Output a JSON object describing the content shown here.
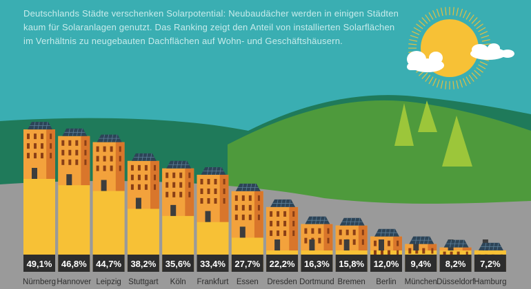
{
  "header": {
    "lines": [
      "Deutschlands Städte verschenken Solarpotential: Neubaudächer werden in einigen Städten",
      "kaum für Solaranlagen genutzt. Das Ranking zeigt den Anteil von installierten Solarflächen",
      "im Verhältnis zu neugebauten Dachflächen auf Wohn- und Geschäftshäusern."
    ]
  },
  "colors": {
    "sky": "#3aaeb2",
    "hill_dark": "#1f7a5a",
    "hill_light": "#4e9a3c",
    "tree": "#9cc63a",
    "ground": "#9a9a9a",
    "bar": "#f7c136",
    "building_front": "#f3a23c",
    "building_side": "#d9762b",
    "window": "#8a3f16",
    "door": "#3d3d3d",
    "solar": "#2d4457",
    "label_bg": "#2d2d2d",
    "label_text": "#ffffff",
    "sun": "#f7c136",
    "cloud": "#ffffff"
  },
  "decor": {
    "sun": "sun-icon",
    "clouds": "cloud-icon",
    "trees": "tree-icon",
    "solar_panel": "solar-panel-icon",
    "building": "building-icon"
  },
  "chart_data": {
    "type": "bar",
    "categories": [
      "Nürnberg",
      "Hannover",
      "Leipzig",
      "Stuttgart",
      "Köln",
      "Frankfurt",
      "Essen",
      "Dresden",
      "Dortmund",
      "Bremen",
      "Berlin",
      "München",
      "Düsseldorf",
      "Hamburg"
    ],
    "values": [
      49.1,
      46.8,
      44.7,
      38.2,
      35.6,
      33.4,
      27.7,
      22.2,
      16.3,
      15.8,
      12.0,
      9.4,
      8.2,
      7.2
    ],
    "value_labels": [
      "49,1%",
      "46,8%",
      "44,7%",
      "38,2%",
      "35,6%",
      "33,4%",
      "27,7%",
      "22,2%",
      "16,3%",
      "15,8%",
      "12,0%",
      "9,4%",
      "8,2%",
      "7,2%"
    ],
    "title": "",
    "xlabel": "",
    "ylabel": "",
    "ylim": [
      0,
      52
    ],
    "grid": false,
    "legend": "none"
  }
}
